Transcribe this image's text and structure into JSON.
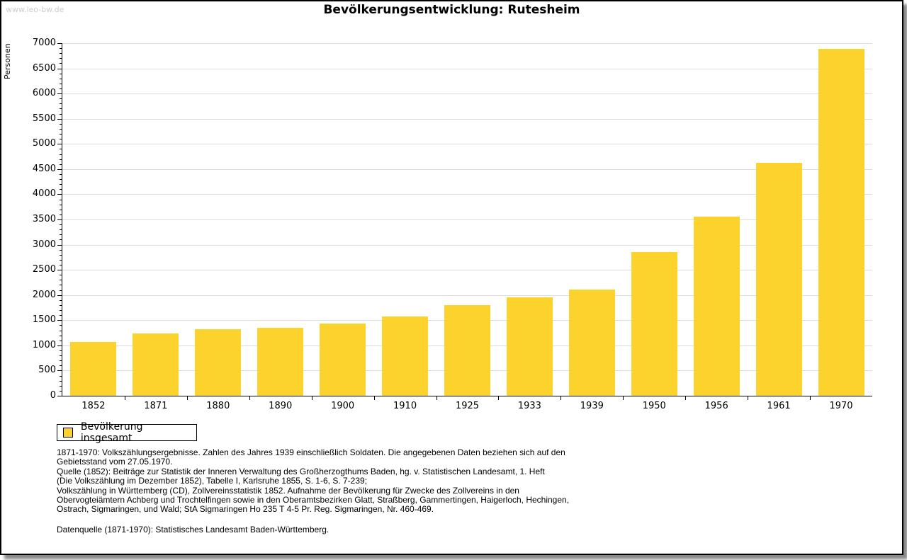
{
  "watermark": "www.leo-bw.de",
  "chart_data": {
    "type": "bar",
    "title": "Bevölkerungsentwicklung: Rutesheim",
    "xlabel": "",
    "ylabel": "Personen",
    "categories": [
      "1852",
      "1871",
      "1880",
      "1890",
      "1900",
      "1910",
      "1925",
      "1933",
      "1939",
      "1950",
      "1956",
      "1961",
      "1970"
    ],
    "series": [
      {
        "name": "Bevölkerung insgesamt",
        "values": [
          1070,
          1235,
          1315,
          1355,
          1435,
          1570,
          1795,
          1950,
          2110,
          2860,
          3555,
          4620,
          6885
        ]
      }
    ],
    "ylim": [
      0,
      7000
    ],
    "y_tick_step": 500,
    "y_minor_tick_step": 100,
    "y_ticks": [
      "0",
      "500",
      "1000",
      "1500",
      "2000",
      "2500",
      "3000",
      "3500",
      "4000",
      "4500",
      "5000",
      "5500",
      "6000",
      "6500",
      "7000"
    ],
    "grid": true,
    "legend_position": "bottom-left",
    "bar_color": "#FCD32D"
  },
  "notes": {
    "lines": [
      "1871-1970: Volkszählungsergebnisse. Zahlen des Jahres 1939 einschließlich Soldaten. Die angegebenen Daten beziehen sich auf den",
      "Gebietsstand vom 27.05.1970.",
      "Quelle (1852): Beiträge zur Statistik der Inneren Verwaltung des Großherzogthums Baden, hg. v. Statistischen Landesamt, 1. Heft",
      "(Die Volkszählung im Dezember 1852), Tabelle I, Karlsruhe 1855, S. 1-6, S. 7-239;",
      "Volkszählung in Württemberg (CD), Zollvereinsstatistik 1852. Aufnahme der Bevölkerung für Zwecke des Zollvereins in den",
      "Obervogteiämtern Achberg und Trochtelfingen sowie in den Oberamtsbezirken Glatt, Straßberg, Gammertingen, Haigerloch, Hechingen,",
      "Ostrach, Sigmaringen, und Wald; StA Sigmaringen Ho 235 T 4-5 Pr. Reg. Sigmaringen, Nr. 460-469."
    ],
    "datasource": "Datenquelle (1871-1970): Statistisches Landesamt Baden-Württemberg."
  },
  "colors": {
    "bar": "#FCD32D",
    "grid": "#DCDCDC",
    "axis": "#000000",
    "watermark": "#CCCCCC",
    "shadow": "#8A8A8A"
  }
}
